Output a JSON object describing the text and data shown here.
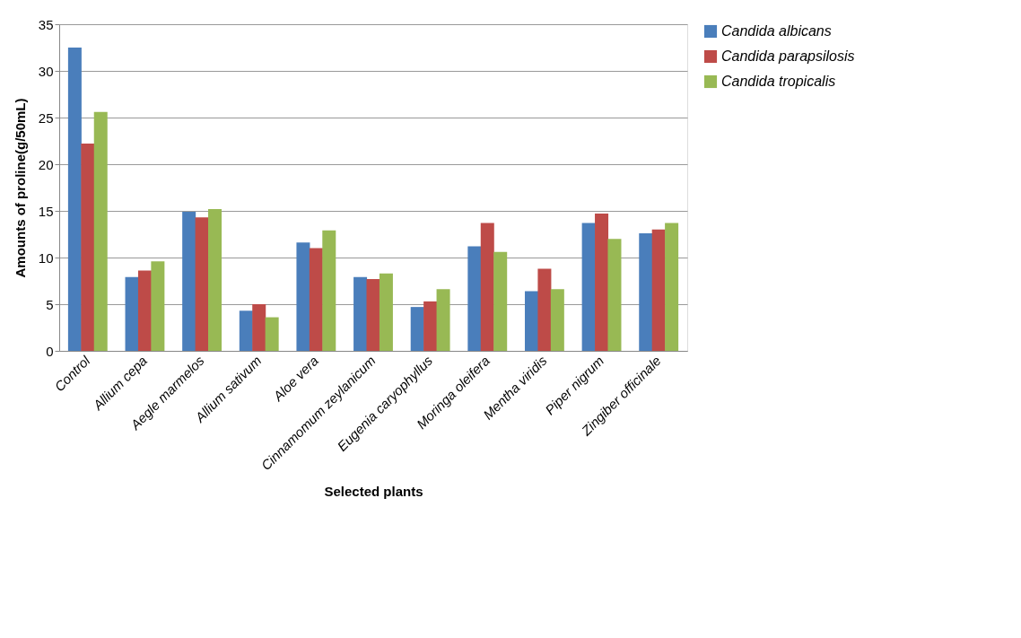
{
  "chart_data": {
    "type": "bar",
    "xlabel": "Selected plants",
    "ylabel": "Amounts of proline(g/50mL)",
    "categories": [
      "Control",
      "Allium cepa",
      "Aegle marmelos",
      "Allium sativum",
      "Aloe vera",
      "Cinnamomum zeylanicum",
      "Eugenia caryophyllus",
      "Moringa oleifera",
      "Mentha viridis",
      "Piper nigrum",
      "Zingiber officinale"
    ],
    "series": [
      {
        "name": "Candida albicans",
        "color": "#4a7ebb",
        "values": [
          32.5,
          7.9,
          14.9,
          4.3,
          11.6,
          7.9,
          4.7,
          11.2,
          6.4,
          13.7,
          12.6
        ]
      },
      {
        "name": "Candida parapsilosis",
        "color": "#be4b48",
        "values": [
          22.2,
          8.6,
          14.3,
          5.0,
          11.0,
          7.7,
          5.3,
          13.7,
          8.8,
          14.7,
          13.0
        ]
      },
      {
        "name": "Candida tropicalis",
        "color": "#98b954",
        "values": [
          25.6,
          9.6,
          15.2,
          3.6,
          12.9,
          8.3,
          6.6,
          10.6,
          6.6,
          12.0,
          13.7
        ]
      }
    ],
    "ylim": [
      0,
      35
    ],
    "yticks": [
      0,
      5,
      10,
      15,
      20,
      25,
      30,
      35
    ],
    "grid": "y",
    "legend": "right"
  }
}
